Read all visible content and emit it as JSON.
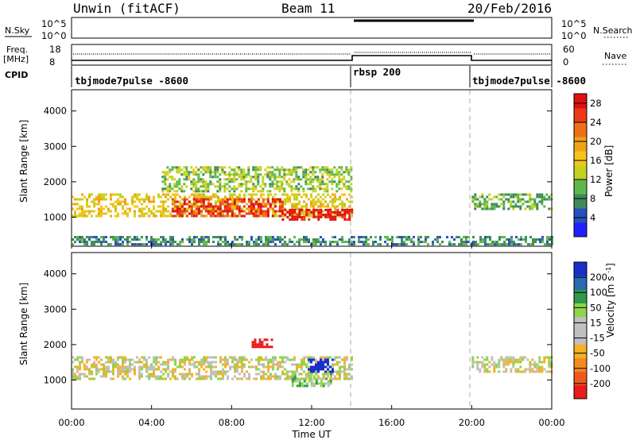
{
  "header": {
    "title_left": "Unwin (fitACF)",
    "title_center": "Beam 11",
    "title_right": "20/Feb/2016"
  },
  "aux_panels": {
    "nsky_label": "N.Sky",
    "nsearch_label": "N.Search",
    "nsky_ticks": [
      "10^5",
      "10^0"
    ],
    "freq_label_1": "Freq.",
    "freq_label_2": "[MHz]",
    "freq_ticks": [
      "18",
      "8"
    ],
    "nave_label": "Nave",
    "nave_ticks": [
      "60",
      "0"
    ],
    "cpid_label": "CPID"
  },
  "modes": [
    {
      "start": 0,
      "end": 14,
      "name": "tbjmode7pulse -8600"
    },
    {
      "start": 14,
      "end": 20,
      "name": "rbsp 200"
    },
    {
      "start": 20,
      "end": 24,
      "name": "tbjmode7pulse -8600"
    }
  ],
  "colors": {
    "power_scale": [
      "#1f1fff",
      "#2a4fbf",
      "#3d8a5a",
      "#5fb84a",
      "#c4d21e",
      "#f5c51b",
      "#f0a21b",
      "#ef6e17",
      "#ea3a17",
      "#e01010"
    ],
    "velocity_scale": [
      "#e81c1c",
      "#ef5a1c",
      "#f28a1e",
      "#f6b224",
      "#c0c0c0",
      "#c0c0c0",
      "#8cd64a",
      "#2e9a4a",
      "#2a6ab0",
      "#1a2ecc"
    ]
  },
  "chart_data": [
    {
      "type": "heatmap",
      "title": "",
      "xlabel": "Time UT",
      "ylabel": "Slant Range [km]",
      "x_tick_labels": [
        "00:00",
        "04:00",
        "08:00",
        "12:00",
        "16:00",
        "20:00",
        "00:00"
      ],
      "x_range_hours": [
        0,
        24
      ],
      "y_ticks": [
        1000,
        2000,
        3000,
        4000
      ],
      "ylim": [
        180,
        4600
      ],
      "colorbar": {
        "label": "Power [dB]",
        "ticks": [
          4,
          8,
          12,
          16,
          20,
          24,
          28
        ],
        "range": [
          0,
          30
        ]
      },
      "echo_bands": [
        {
          "t0": 0.0,
          "t1": 14.0,
          "r0": 1000,
          "r1": 1650,
          "value": 16
        },
        {
          "t0": 5.0,
          "t1": 10.5,
          "r0": 1000,
          "r1": 1500,
          "value": 26
        },
        {
          "t0": 10.5,
          "t1": 14.0,
          "r0": 900,
          "r1": 1200,
          "value": 29
        },
        {
          "t0": 4.5,
          "t1": 14.0,
          "r0": 1700,
          "r1": 2400,
          "value": 12
        },
        {
          "t0": 0.0,
          "t1": 24.0,
          "r0": 200,
          "r1": 450,
          "value": 8
        },
        {
          "t0": 20.0,
          "t1": 24.0,
          "r0": 1200,
          "r1": 1650,
          "value": 10
        }
      ]
    },
    {
      "type": "heatmap",
      "title": "",
      "xlabel": "Time UT",
      "ylabel": "Slant Range [km]",
      "x_tick_labels": [
        "00:00",
        "04:00",
        "08:00",
        "12:00",
        "16:00",
        "20:00",
        "00:00"
      ],
      "x_range_hours": [
        0,
        24
      ],
      "y_ticks": [
        1000,
        2000,
        3000,
        4000
      ],
      "ylim": [
        180,
        4600
      ],
      "colorbar": {
        "label": "Velocity [m s^-1]",
        "ticks": [
          200,
          100,
          50,
          15,
          -15,
          -50,
          -100,
          -200
        ]
      },
      "echo_bands": [
        {
          "t0": 0.0,
          "t1": 14.0,
          "r0": 1000,
          "r1": 1650,
          "value": 0
        },
        {
          "t0": 9.0,
          "t1": 10.0,
          "r0": 1900,
          "r1": 2150,
          "value": -250
        },
        {
          "t0": 11.8,
          "t1": 13.0,
          "r0": 1200,
          "r1": 1600,
          "value": 250
        },
        {
          "t0": 11.0,
          "t1": 13.0,
          "r0": 800,
          "r1": 1200,
          "value": 40
        },
        {
          "t0": 20.0,
          "t1": 24.0,
          "r0": 1200,
          "r1": 1650,
          "value": 0
        }
      ]
    }
  ]
}
